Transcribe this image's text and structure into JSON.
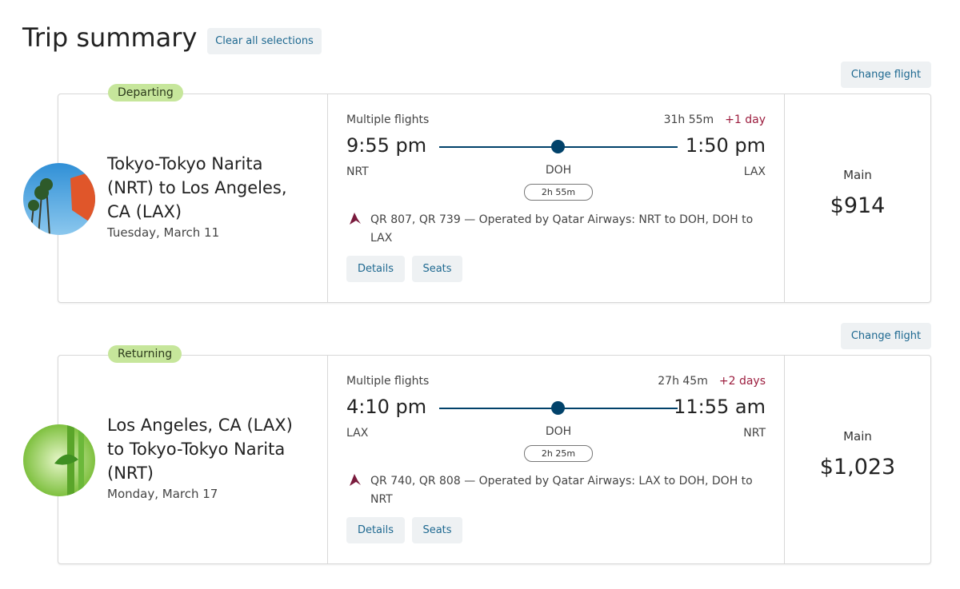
{
  "header": {
    "title": "Trip summary",
    "clear_button": "Clear all selections"
  },
  "trips": [
    {
      "change_button": "Change flight",
      "badge": "Departing",
      "route": "Tokyo-Tokyo Narita (NRT) to Los Angeles, CA (LAX)",
      "date": "Tuesday, March 11",
      "stops_label": "Multiple flights",
      "duration": "31h 55m",
      "day_offset": "+1 day",
      "depart_time": "9:55 pm",
      "arrive_time": "1:50 pm",
      "origin": "NRT",
      "stop": "DOH",
      "destination": "LAX",
      "layover": "2h 55m",
      "flights": "QR 807, QR 739 — Operated by Qatar Airways: NRT to DOH, DOH to LAX",
      "details_button": "Details",
      "seats_button": "Seats",
      "fare_class": "Main",
      "price": "$914"
    },
    {
      "change_button": "Change flight",
      "badge": "Returning",
      "route": "Los Angeles, CA (LAX) to Tokyo-Tokyo Narita (NRT)",
      "date": "Monday, March 17",
      "stops_label": "Multiple flights",
      "duration": "27h 45m",
      "day_offset": "+2 days",
      "depart_time": "4:10 pm",
      "arrive_time": "11:55 am",
      "origin": "LAX",
      "stop": "DOH",
      "destination": "NRT",
      "layover": "2h 25m",
      "flights": "QR 740, QR 808 — Operated by Qatar Airways: LAX to DOH, DOH to NRT",
      "details_button": "Details",
      "seats_button": "Seats",
      "fare_class": "Main",
      "price": "$1,023"
    }
  ]
}
